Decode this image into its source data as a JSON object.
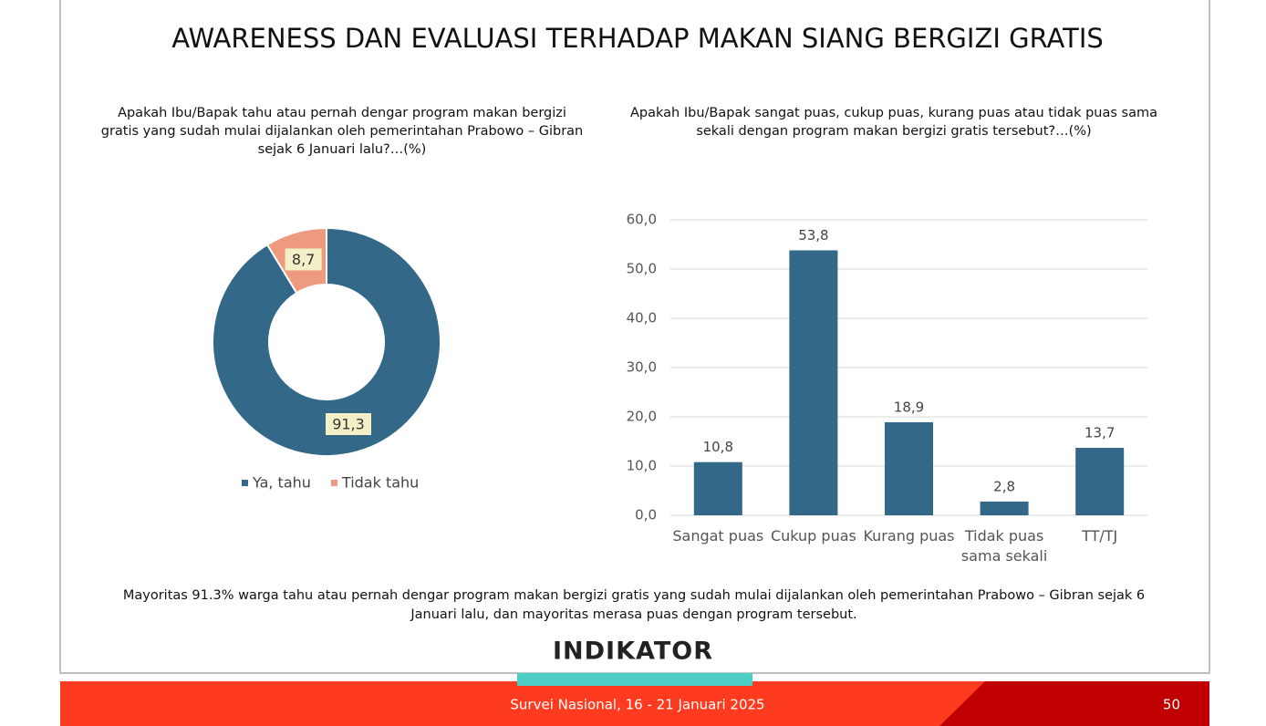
{
  "title": "AWARENESS DAN EVALUASI TERHADAP MAKAN SIANG BERGIZI GRATIS",
  "chart_data": [
    {
      "type": "donut",
      "title": "Apakah Ibu/Bapak tahu atau pernah dengar program makan bergizi gratis yang sudah mulai dijalankan oleh pemerintahan Prabowo – Gibran sejak 6 Januari lalu?…(%)",
      "categories": [
        "Ya, tahu",
        "Tidak tahu"
      ],
      "values": [
        91.3,
        8.7
      ],
      "value_labels": [
        "91,3",
        "8,7"
      ],
      "colors": [
        "#336888",
        "#ee9a7e"
      ]
    },
    {
      "type": "bar",
      "title": "Apakah Ibu/Bapak sangat puas, cukup puas, kurang puas atau tidak puas sama sekali dengan program makan bergizi gratis tersebut?…(%)",
      "categories": [
        "Sangat puas",
        "Cukup puas",
        "Kurang puas",
        "Tidak puas sama sekali",
        "TT/TJ"
      ],
      "values": [
        10.8,
        53.8,
        18.9,
        2.8,
        13.7
      ],
      "value_labels": [
        "10,8",
        "53,8",
        "18,9",
        "2,8",
        "13,7"
      ],
      "color": "#336888",
      "ylim": [
        0,
        60
      ],
      "yticks": [
        {
          "value": 0,
          "label": "0,0"
        },
        {
          "value": 10,
          "label": "10,0"
        },
        {
          "value": 20,
          "label": "20,0"
        },
        {
          "value": 30,
          "label": "30,0"
        },
        {
          "value": 40,
          "label": "40,0"
        },
        {
          "value": 50,
          "label": "50,0"
        },
        {
          "value": 60,
          "label": "60,0"
        }
      ],
      "grid": true
    }
  ],
  "note": "Mayoritas 91.3% warga tahu atau pernah dengar program makan bergizi gratis yang sudah mulai dijalankan oleh pemerintahan Prabowo – Gibran sejak 6 Januari lalu, dan mayoritas merasa puas dengan program tersebut.",
  "logo": "INDIKATOR",
  "footer": "Survei Nasional, 16 - 21 Januari 2025",
  "page_number": 50
}
